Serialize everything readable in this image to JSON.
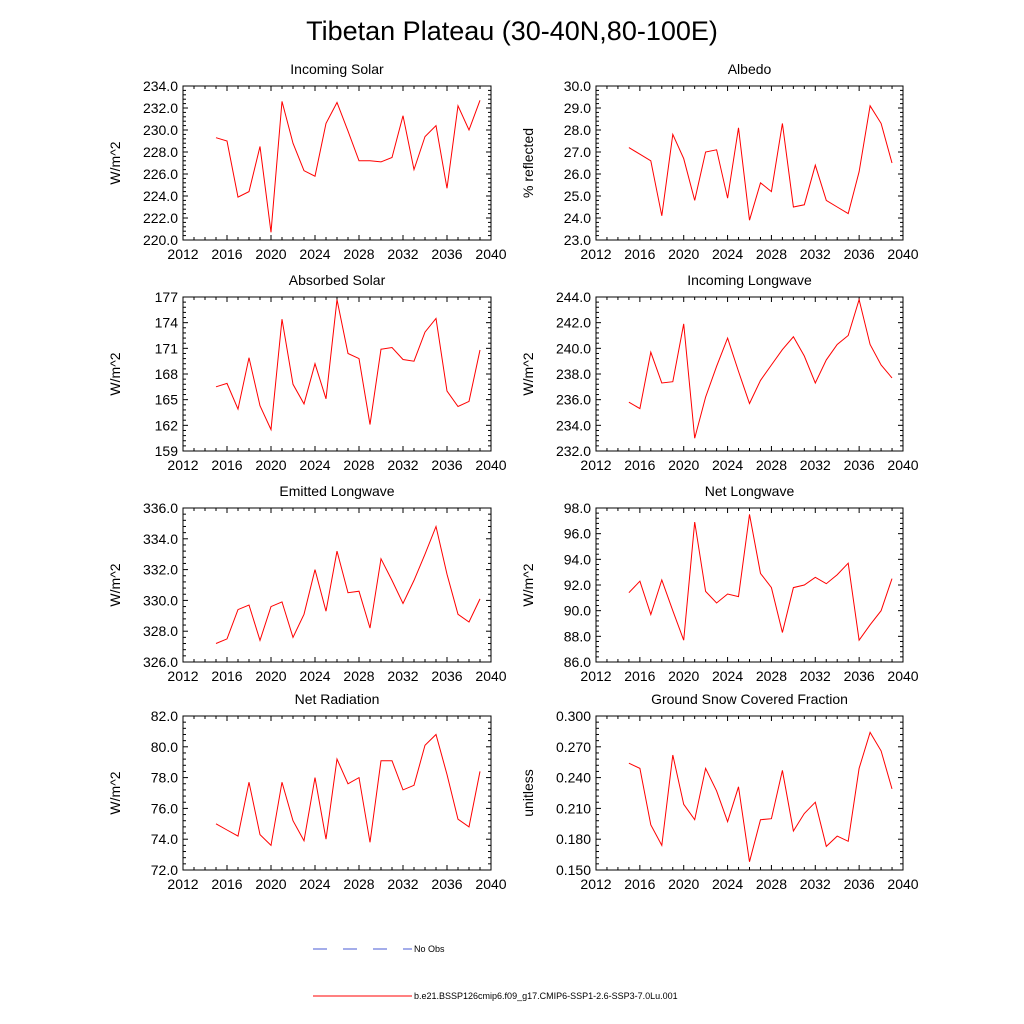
{
  "figure_title": "Tibetan Plateau (30-40N,80-100E)",
  "legend": {
    "obs_label": "No Obs",
    "model_label": "b.e21.BSSP126cmip6.f09_g17.CMIP6-SSP1-2.6-SSP3-7.0Lu.001",
    "obs_color": "#4a5bd4",
    "model_color": "#ff0000"
  },
  "chart_data": [
    {
      "type": "line",
      "title": "Incoming Solar",
      "ylabel": "W/m^2",
      "xlim": [
        2012,
        2040
      ],
      "ylim": [
        220.0,
        234.0
      ],
      "xticks": [
        2012,
        2016,
        2020,
        2024,
        2028,
        2032,
        2036,
        2040
      ],
      "yticks": [
        220.0,
        222.0,
        224.0,
        226.0,
        228.0,
        230.0,
        232.0,
        234.0
      ],
      "ydecimals": 1,
      "series": [
        {
          "x": [
            2015,
            2016,
            2017,
            2018,
            2019,
            2020,
            2021,
            2022,
            2023,
            2024,
            2025,
            2026,
            2027,
            2028,
            2029,
            2030,
            2031,
            2032,
            2033,
            2034,
            2035,
            2036,
            2037,
            2038,
            2039
          ],
          "y": [
            229.3,
            229.0,
            223.9,
            224.4,
            228.5,
            220.7,
            232.6,
            228.8,
            226.3,
            225.8,
            230.6,
            232.5,
            229.9,
            227.2,
            227.2,
            227.1,
            227.5,
            231.3,
            226.4,
            229.4,
            230.4,
            224.7,
            232.2,
            230.0,
            232.7
          ]
        }
      ]
    },
    {
      "type": "line",
      "title": "Albedo",
      "ylabel": "% reflected",
      "xlim": [
        2012,
        2040
      ],
      "ylim": [
        23.0,
        30.0
      ],
      "xticks": [
        2012,
        2016,
        2020,
        2024,
        2028,
        2032,
        2036,
        2040
      ],
      "yticks": [
        23.0,
        24.0,
        25.0,
        26.0,
        27.0,
        28.0,
        29.0,
        30.0
      ],
      "ydecimals": 1,
      "series": [
        {
          "x": [
            2015,
            2016,
            2017,
            2018,
            2019,
            2020,
            2021,
            2022,
            2023,
            2024,
            2025,
            2026,
            2027,
            2028,
            2029,
            2030,
            2031,
            2032,
            2033,
            2034,
            2035,
            2036,
            2037,
            2038,
            2039
          ],
          "y": [
            27.2,
            26.9,
            26.6,
            24.1,
            27.8,
            26.7,
            24.8,
            27.0,
            27.1,
            24.9,
            28.1,
            23.9,
            25.6,
            25.2,
            28.3,
            24.5,
            24.6,
            26.4,
            24.8,
            24.5,
            24.2,
            26.1,
            29.1,
            28.3,
            26.5
          ]
        }
      ]
    },
    {
      "type": "line",
      "title": "Absorbed Solar",
      "ylabel": "W/m^2",
      "xlim": [
        2012,
        2040
      ],
      "ylim": [
        159,
        177
      ],
      "xticks": [
        2012,
        2016,
        2020,
        2024,
        2028,
        2032,
        2036,
        2040
      ],
      "yticks": [
        159,
        162,
        165,
        168,
        171,
        174,
        177
      ],
      "ydecimals": 0,
      "series": [
        {
          "x": [
            2015,
            2016,
            2017,
            2018,
            2019,
            2020,
            2021,
            2022,
            2023,
            2024,
            2025,
            2026,
            2027,
            2028,
            2029,
            2030,
            2031,
            2032,
            2033,
            2034,
            2035,
            2036,
            2037,
            2038,
            2039
          ],
          "y": [
            166.5,
            166.9,
            163.9,
            169.9,
            164.3,
            161.5,
            174.4,
            166.8,
            164.5,
            169.2,
            165.1,
            176.7,
            170.4,
            169.8,
            162.1,
            170.9,
            171.1,
            169.7,
            169.5,
            172.9,
            174.5,
            166.0,
            164.2,
            164.8,
            170.8
          ]
        }
      ]
    },
    {
      "type": "line",
      "title": "Incoming Longwave",
      "ylabel": "W/m^2",
      "xlim": [
        2012,
        2040
      ],
      "ylim": [
        232.0,
        244.0
      ],
      "xticks": [
        2012,
        2016,
        2020,
        2024,
        2028,
        2032,
        2036,
        2040
      ],
      "yticks": [
        232.0,
        234.0,
        236.0,
        238.0,
        240.0,
        242.0,
        244.0
      ],
      "ydecimals": 1,
      "series": [
        {
          "x": [
            2015,
            2016,
            2017,
            2018,
            2019,
            2020,
            2021,
            2022,
            2023,
            2024,
            2025,
            2026,
            2027,
            2028,
            2029,
            2030,
            2031,
            2032,
            2033,
            2034,
            2035,
            2036,
            2037,
            2038,
            2039
          ],
          "y": [
            235.8,
            235.3,
            239.7,
            237.3,
            237.4,
            241.9,
            233.0,
            236.2,
            238.6,
            240.8,
            238.2,
            235.7,
            237.5,
            238.7,
            239.9,
            240.9,
            239.4,
            237.3,
            239.1,
            240.3,
            241.0,
            243.8,
            240.3,
            238.7,
            237.7
          ]
        }
      ]
    },
    {
      "type": "line",
      "title": "Emitted Longwave",
      "ylabel": "W/m^2",
      "xlim": [
        2012,
        2040
      ],
      "ylim": [
        326.0,
        336.0
      ],
      "xticks": [
        2012,
        2016,
        2020,
        2024,
        2028,
        2032,
        2036,
        2040
      ],
      "yticks": [
        326.0,
        328.0,
        330.0,
        332.0,
        334.0,
        336.0
      ],
      "ydecimals": 1,
      "series": [
        {
          "x": [
            2015,
            2016,
            2017,
            2018,
            2019,
            2020,
            2021,
            2022,
            2023,
            2024,
            2025,
            2026,
            2027,
            2028,
            2029,
            2030,
            2031,
            2032,
            2033,
            2034,
            2035,
            2036,
            2037,
            2038,
            2039
          ],
          "y": [
            327.2,
            327.5,
            329.4,
            329.7,
            327.4,
            329.6,
            329.9,
            327.6,
            329.1,
            332.0,
            329.3,
            333.2,
            330.5,
            330.6,
            328.2,
            332.7,
            331.3,
            329.8,
            331.3,
            333.0,
            334.8,
            331.7,
            329.1,
            328.6,
            330.1
          ]
        }
      ]
    },
    {
      "type": "line",
      "title": "Net Longwave",
      "ylabel": "W/m^2",
      "xlim": [
        2012,
        2040
      ],
      "ylim": [
        86.0,
        98.0
      ],
      "xticks": [
        2012,
        2016,
        2020,
        2024,
        2028,
        2032,
        2036,
        2040
      ],
      "yticks": [
        86.0,
        88.0,
        90.0,
        92.0,
        94.0,
        96.0,
        98.0
      ],
      "ydecimals": 1,
      "series": [
        {
          "x": [
            2015,
            2016,
            2017,
            2018,
            2019,
            2020,
            2021,
            2022,
            2023,
            2024,
            2025,
            2026,
            2027,
            2028,
            2029,
            2030,
            2031,
            2032,
            2033,
            2034,
            2035,
            2036,
            2037,
            2038,
            2039
          ],
          "y": [
            91.4,
            92.3,
            89.7,
            92.4,
            90.0,
            87.7,
            96.9,
            91.5,
            90.6,
            91.3,
            91.1,
            97.5,
            92.9,
            91.8,
            88.3,
            91.8,
            92.0,
            92.6,
            92.1,
            92.8,
            93.7,
            87.7,
            88.9,
            90.0,
            92.5
          ]
        }
      ]
    },
    {
      "type": "line",
      "title": "Net Radiation",
      "ylabel": "W/m^2",
      "xlim": [
        2012,
        2040
      ],
      "ylim": [
        72.0,
        82.0
      ],
      "xticks": [
        2012,
        2016,
        2020,
        2024,
        2028,
        2032,
        2036,
        2040
      ],
      "yticks": [
        72.0,
        74.0,
        76.0,
        78.0,
        80.0,
        82.0
      ],
      "ydecimals": 1,
      "series": [
        {
          "x": [
            2015,
            2016,
            2017,
            2018,
            2019,
            2020,
            2021,
            2022,
            2023,
            2024,
            2025,
            2026,
            2027,
            2028,
            2029,
            2030,
            2031,
            2032,
            2033,
            2034,
            2035,
            2036,
            2037,
            2038,
            2039
          ],
          "y": [
            75.0,
            74.6,
            74.2,
            77.7,
            74.3,
            73.6,
            77.7,
            75.2,
            73.9,
            78.0,
            74.0,
            79.2,
            77.6,
            78.0,
            73.8,
            79.1,
            79.1,
            77.2,
            77.5,
            80.1,
            80.8,
            78.2,
            75.3,
            74.8,
            78.4
          ]
        }
      ]
    },
    {
      "type": "line",
      "title": "Ground Snow Covered Fraction",
      "ylabel": "unitless",
      "xlim": [
        2012,
        2040
      ],
      "ylim": [
        0.15,
        0.3
      ],
      "xticks": [
        2012,
        2016,
        2020,
        2024,
        2028,
        2032,
        2036,
        2040
      ],
      "yticks": [
        0.15,
        0.18,
        0.21,
        0.24,
        0.27,
        0.3
      ],
      "ydecimals": 3,
      "series": [
        {
          "x": [
            2015,
            2016,
            2017,
            2018,
            2019,
            2020,
            2021,
            2022,
            2023,
            2024,
            2025,
            2026,
            2027,
            2028,
            2029,
            2030,
            2031,
            2032,
            2033,
            2034,
            2035,
            2036,
            2037,
            2038,
            2039
          ],
          "y": [
            0.254,
            0.249,
            0.194,
            0.174,
            0.262,
            0.214,
            0.199,
            0.249,
            0.227,
            0.197,
            0.231,
            0.158,
            0.199,
            0.2,
            0.247,
            0.188,
            0.205,
            0.216,
            0.173,
            0.183,
            0.178,
            0.249,
            0.284,
            0.266,
            0.229
          ]
        }
      ]
    }
  ]
}
